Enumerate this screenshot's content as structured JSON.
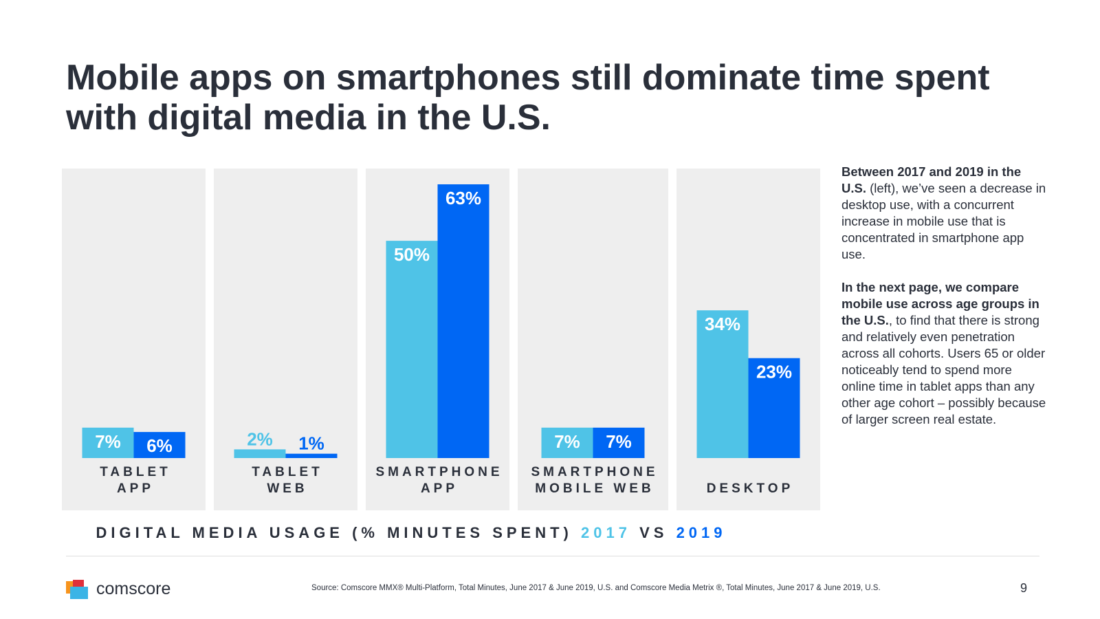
{
  "title": {
    "line1": "Mobile apps on smartphones still dominate time spent",
    "line2": "with digital media in the U.S."
  },
  "colors": {
    "y2017": "#4fc3e7",
    "y2019": "#0067f4",
    "panel": "#eeeeee",
    "text": "#2a2f3a"
  },
  "chart_data": {
    "type": "bar",
    "title": "DIGITAL MEDIA USAGE (% MINUTES SPENT) 2017 VS 2019",
    "categories": [
      [
        "TABLET",
        "APP"
      ],
      [
        "TABLET",
        "WEB"
      ],
      [
        "SMARTPHONE",
        "APP"
      ],
      [
        "SMARTPHONE",
        "MOBILE WEB"
      ],
      [
        "DESKTOP"
      ]
    ],
    "series": [
      {
        "name": "2017",
        "values": [
          7,
          2,
          50,
          7,
          34
        ],
        "labels": [
          "7%",
          "2%",
          "50%",
          "7%",
          "34%"
        ],
        "color": "#4fc3e7"
      },
      {
        "name": "2019",
        "values": [
          6,
          1,
          63,
          7,
          23
        ],
        "labels": [
          "6%",
          "1%",
          "63%",
          "7%",
          "23%"
        ],
        "color": "#0067f4"
      }
    ],
    "ylim": [
      0,
      66
    ],
    "grid": false,
    "legend": "caption below chart"
  },
  "caption": {
    "prefix": "DIGITAL MEDIA USAGE (% MINUTES SPENT)",
    "year1": "2017",
    "vs": "VS",
    "year2": "2019"
  },
  "side_text": {
    "p1_bold": "Between 2017 and 2019 in the U.S.",
    "p1_rest": " (left), we’ve seen a decrease in desktop use, with a concurrent increase in mobile use that is  concentrated in smartphone app use.",
    "p2_bold": "In the next page, we compare mobile use across age groups in the U.S.",
    "p2_rest": ", to find that there is strong and relatively even penetration across all cohorts. Users 65 or older noticeably tend to spend more online time in tablet apps than any other age cohort – possibly because of larger screen real estate."
  },
  "footer": {
    "brand": "comscore",
    "source": "Source: Comscore MMX® Multi-Platform, Total Minutes, June 2017 & June 2019, U.S. and Comscore Media Metrix ®, Total Minutes, June 2017 & June 2019, U.S.",
    "page_number": "9"
  }
}
